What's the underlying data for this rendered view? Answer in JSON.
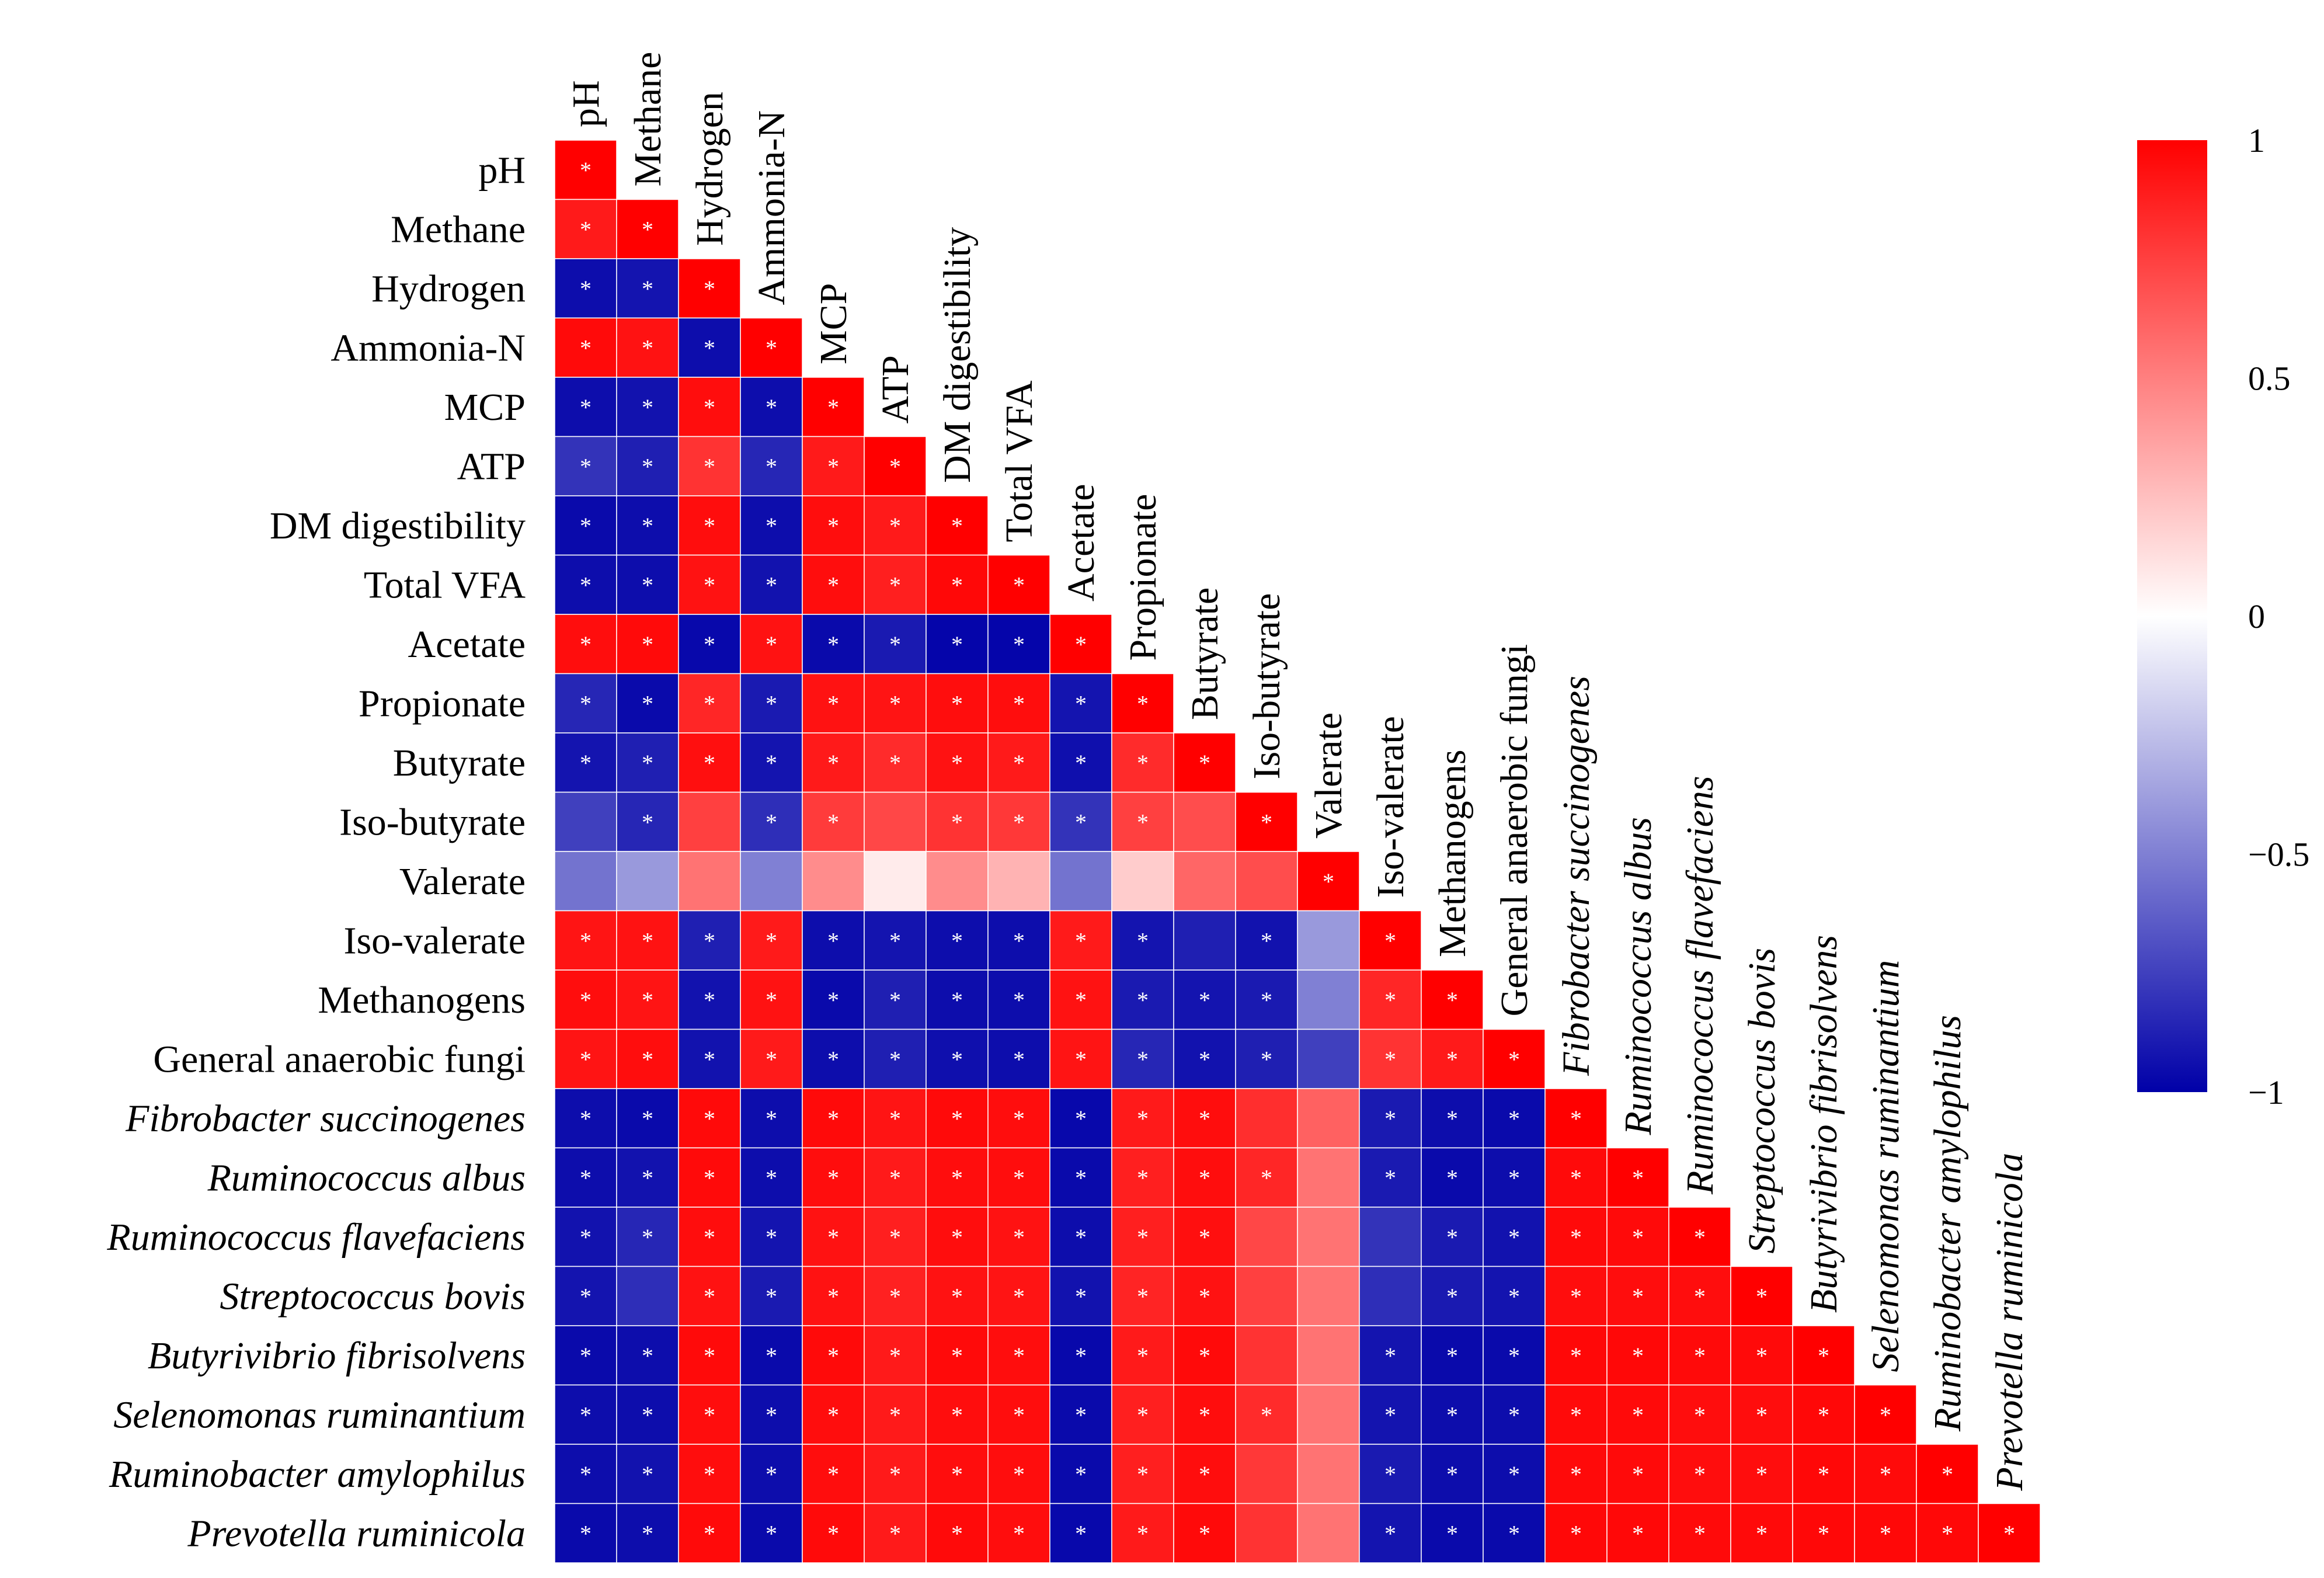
{
  "chart_data": {
    "type": "heatmap",
    "subtype": "lower-triangular correlation matrix",
    "variables": [
      {
        "name": "pH",
        "italic": false
      },
      {
        "name": "Methane",
        "italic": false
      },
      {
        "name": "Hydrogen",
        "italic": false
      },
      {
        "name": "Ammonia-N",
        "italic": false
      },
      {
        "name": "MCP",
        "italic": false
      },
      {
        "name": "ATP",
        "italic": false
      },
      {
        "name": "DM digestibility",
        "italic": false
      },
      {
        "name": "Total VFA",
        "italic": false
      },
      {
        "name": "Acetate",
        "italic": false
      },
      {
        "name": "Propionate",
        "italic": false
      },
      {
        "name": "Butyrate",
        "italic": false
      },
      {
        "name": "Iso-butyrate",
        "italic": false
      },
      {
        "name": "Valerate",
        "italic": false
      },
      {
        "name": "Iso-valerate",
        "italic": false
      },
      {
        "name": "Methanogens",
        "italic": false
      },
      {
        "name": "General anaerobic fungi",
        "italic": false
      },
      {
        "name": "Fibrobacter succinogenes",
        "italic": true
      },
      {
        "name": "Ruminococcus albus",
        "italic": true
      },
      {
        "name": "Ruminococcus flavefaciens",
        "italic": true
      },
      {
        "name": "Streptococcus bovis",
        "italic": true
      },
      {
        "name": "Butyrivibrio fibrisolvens",
        "italic": true
      },
      {
        "name": "Selenomonas ruminantium",
        "italic": true
      },
      {
        "name": "Ruminobacter amylophilus",
        "italic": true
      },
      {
        "name": "Prevotella ruminicola",
        "italic": true
      }
    ],
    "rows": [
      {
        "r": [
          1.0
        ],
        "sig": [
          1
        ]
      },
      {
        "r": [
          0.9,
          1.0
        ],
        "sig": [
          1,
          1
        ]
      },
      {
        "r": [
          -0.95,
          -0.92,
          1.0
        ],
        "sig": [
          1,
          1,
          1
        ]
      },
      {
        "r": [
          0.96,
          0.93,
          -0.95,
          1.0
        ],
        "sig": [
          1,
          1,
          1,
          1
        ]
      },
      {
        "r": [
          -0.95,
          -0.93,
          0.95,
          -0.95,
          1.0
        ],
        "sig": [
          1,
          1,
          1,
          1,
          1
        ]
      },
      {
        "r": [
          -0.8,
          -0.88,
          0.8,
          -0.85,
          0.9,
          1.0
        ],
        "sig": [
          1,
          1,
          1,
          1,
          1,
          1
        ]
      },
      {
        "r": [
          -0.96,
          -0.95,
          0.95,
          -0.95,
          0.95,
          0.9,
          1.0
        ],
        "sig": [
          1,
          1,
          1,
          1,
          1,
          1,
          1
        ]
      },
      {
        "r": [
          -0.95,
          -0.95,
          0.93,
          -0.93,
          0.95,
          0.88,
          0.97,
          1.0
        ],
        "sig": [
          1,
          1,
          1,
          1,
          1,
          1,
          1,
          1
        ]
      },
      {
        "r": [
          0.95,
          0.96,
          -0.97,
          0.93,
          -0.96,
          -0.9,
          -0.98,
          -0.98,
          1.0
        ],
        "sig": [
          1,
          1,
          1,
          1,
          1,
          1,
          1,
          1,
          1
        ]
      },
      {
        "r": [
          -0.85,
          -0.96,
          0.85,
          -0.9,
          0.93,
          0.92,
          0.95,
          0.95,
          -0.92,
          1.0
        ],
        "sig": [
          1,
          1,
          1,
          1,
          1,
          1,
          1,
          1,
          1,
          1
        ]
      },
      {
        "r": [
          -0.92,
          -0.88,
          0.94,
          -0.92,
          0.9,
          0.83,
          0.93,
          0.9,
          -0.94,
          0.83,
          1.0
        ],
        "sig": [
          1,
          1,
          1,
          1,
          1,
          1,
          1,
          1,
          1,
          1,
          1
        ]
      },
      {
        "r": [
          -0.75,
          -0.85,
          0.75,
          -0.82,
          0.77,
          0.72,
          0.8,
          0.78,
          -0.8,
          0.75,
          0.7,
          1.0
        ],
        "sig": [
          0,
          1,
          0,
          1,
          1,
          0,
          1,
          1,
          1,
          1,
          0,
          1
        ]
      },
      {
        "r": [
          -0.55,
          -0.4,
          0.55,
          -0.5,
          0.45,
          0.08,
          0.45,
          0.3,
          -0.55,
          0.2,
          0.6,
          0.7,
          1.0
        ],
        "sig": [
          0,
          0,
          0,
          0,
          0,
          0,
          0,
          0,
          0,
          0,
          0,
          0,
          1
        ]
      },
      {
        "r": [
          0.92,
          0.93,
          -0.88,
          0.9,
          -0.95,
          -0.92,
          -0.95,
          -0.95,
          0.9,
          -0.92,
          -0.88,
          -0.93,
          -0.4,
          1.0
        ],
        "sig": [
          1,
          1,
          1,
          1,
          1,
          1,
          1,
          1,
          1,
          1,
          0,
          1,
          0,
          1
        ]
      },
      {
        "r": [
          0.95,
          0.92,
          -0.93,
          0.93,
          -0.96,
          -0.88,
          -0.95,
          -0.95,
          0.93,
          -0.9,
          -0.92,
          -0.9,
          -0.5,
          0.85,
          1.0
        ],
        "sig": [
          1,
          1,
          1,
          1,
          1,
          1,
          1,
          1,
          1,
          1,
          1,
          1,
          0,
          1,
          1
        ]
      },
      {
        "r": [
          0.92,
          0.95,
          -0.93,
          0.9,
          -0.95,
          -0.88,
          -0.94,
          -0.95,
          0.92,
          -0.85,
          -0.93,
          -0.88,
          -0.75,
          0.8,
          0.9,
          1.0
        ],
        "sig": [
          1,
          1,
          1,
          1,
          1,
          1,
          1,
          1,
          1,
          1,
          1,
          1,
          0,
          1,
          1,
          1
        ]
      },
      {
        "r": [
          -0.95,
          -0.96,
          0.96,
          -0.95,
          0.96,
          0.92,
          0.96,
          0.95,
          -0.97,
          0.9,
          0.95,
          0.82,
          0.62,
          -0.9,
          -0.95,
          -0.96,
          1.0
        ],
        "sig": [
          1,
          1,
          1,
          1,
          1,
          1,
          1,
          1,
          1,
          1,
          1,
          0,
          0,
          1,
          1,
          1,
          1
        ]
      },
      {
        "r": [
          -0.95,
          -0.93,
          0.96,
          -0.95,
          0.95,
          0.9,
          0.95,
          0.95,
          -0.96,
          0.88,
          0.95,
          0.85,
          0.55,
          -0.9,
          -0.96,
          -0.95,
          0.96,
          1.0
        ],
        "sig": [
          1,
          1,
          1,
          1,
          1,
          1,
          1,
          1,
          1,
          1,
          1,
          1,
          0,
          1,
          1,
          1,
          1,
          1
        ]
      },
      {
        "r": [
          -0.93,
          -0.85,
          0.95,
          -0.92,
          0.93,
          0.88,
          0.95,
          0.93,
          -0.95,
          0.88,
          0.94,
          0.72,
          0.55,
          -0.8,
          -0.9,
          -0.93,
          0.96,
          0.96,
          1.0
        ],
        "sig": [
          1,
          1,
          1,
          1,
          1,
          1,
          1,
          1,
          1,
          1,
          1,
          0,
          0,
          0,
          1,
          1,
          1,
          1,
          1
        ]
      },
      {
        "r": [
          -0.92,
          -0.82,
          0.93,
          -0.9,
          0.93,
          0.87,
          0.93,
          0.92,
          -0.93,
          0.86,
          0.93,
          0.75,
          0.55,
          -0.82,
          -0.9,
          -0.92,
          0.95,
          0.95,
          0.95,
          1.0
        ],
        "sig": [
          1,
          0,
          1,
          1,
          1,
          1,
          1,
          1,
          1,
          1,
          1,
          0,
          0,
          0,
          1,
          1,
          1,
          1,
          1,
          1
        ]
      },
      {
        "r": [
          -0.96,
          -0.95,
          0.96,
          -0.96,
          0.96,
          0.9,
          0.96,
          0.95,
          -0.97,
          0.9,
          0.96,
          0.8,
          0.55,
          -0.92,
          -0.96,
          -0.96,
          0.97,
          0.97,
          0.96,
          0.96,
          1.0
        ],
        "sig": [
          1,
          1,
          1,
          1,
          1,
          1,
          1,
          1,
          1,
          1,
          1,
          0,
          0,
          1,
          1,
          1,
          1,
          1,
          1,
          1,
          1
        ]
      },
      {
        "r": [
          -0.95,
          -0.95,
          0.95,
          -0.95,
          0.95,
          0.9,
          0.95,
          0.95,
          -0.96,
          0.88,
          0.95,
          0.83,
          0.55,
          -0.92,
          -0.95,
          -0.95,
          0.96,
          0.96,
          0.95,
          0.95,
          0.97,
          1.0
        ],
        "sig": [
          1,
          1,
          1,
          1,
          1,
          1,
          1,
          1,
          1,
          1,
          1,
          1,
          0,
          1,
          1,
          1,
          1,
          1,
          1,
          1,
          1,
          1
        ]
      },
      {
        "r": [
          -0.95,
          -0.93,
          0.95,
          -0.95,
          0.95,
          0.9,
          0.95,
          0.95,
          -0.96,
          0.88,
          0.95,
          0.78,
          0.55,
          -0.9,
          -0.95,
          -0.95,
          0.96,
          0.96,
          0.95,
          0.95,
          0.97,
          0.96,
          1.0
        ],
        "sig": [
          1,
          1,
          1,
          1,
          1,
          1,
          1,
          1,
          1,
          1,
          1,
          0,
          0,
          1,
          1,
          1,
          1,
          1,
          1,
          1,
          1,
          1,
          1
        ]
      },
      {
        "r": [
          -0.96,
          -0.95,
          0.96,
          -0.96,
          0.96,
          0.9,
          0.96,
          0.95,
          -0.97,
          0.9,
          0.96,
          0.8,
          0.55,
          -0.92,
          -0.96,
          -0.96,
          0.97,
          0.97,
          0.96,
          0.96,
          0.97,
          0.97,
          0.97,
          1.0
        ],
        "sig": [
          1,
          1,
          1,
          1,
          1,
          1,
          1,
          1,
          1,
          1,
          1,
          0,
          0,
          1,
          1,
          1,
          1,
          1,
          1,
          1,
          1,
          1,
          1,
          1
        ]
      }
    ],
    "significance_marker": "*",
    "color_scale": {
      "min": -1,
      "max": 1,
      "low_color": "#0000a8",
      "mid_color": "#ffffff",
      "high_color": "#ff0000",
      "ticks": [
        1,
        0.5,
        0,
        -0.5,
        -1
      ],
      "tick_labels": [
        "1",
        "0.5",
        "0",
        "−0.5",
        "−1"
      ]
    }
  }
}
